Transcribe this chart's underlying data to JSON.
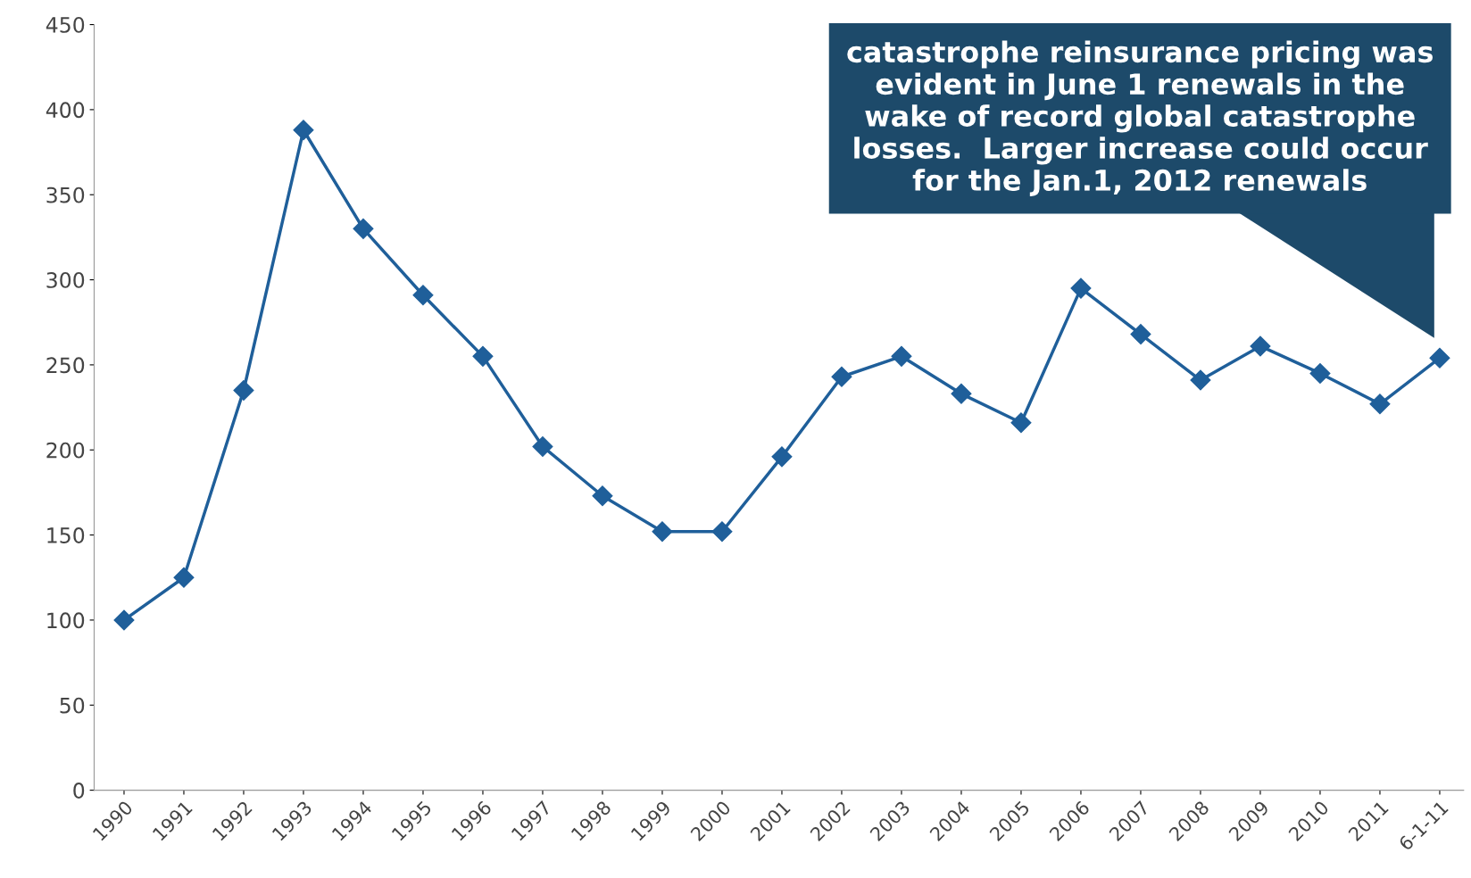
{
  "chart_data": {
    "type": "line",
    "categories": [
      "1990",
      "1991",
      "1992",
      "1993",
      "1994",
      "1995",
      "1996",
      "1997",
      "1998",
      "1999",
      "2000",
      "2001",
      "2002",
      "2003",
      "2004",
      "2005",
      "2006",
      "2007",
      "2008",
      "2009",
      "2010",
      "2011",
      "6-1-11"
    ],
    "series": [
      {
        "color": "#1f5f9a",
        "values": [
          100,
          125,
          235,
          388,
          330,
          291,
          255,
          202,
          173,
          152,
          152,
          196,
          243,
          255,
          233,
          216,
          295,
          268,
          241,
          261,
          245,
          227,
          254
        ]
      }
    ],
    "ylim": [
      0,
      450
    ],
    "yticks": [
      0,
      50,
      100,
      150,
      200,
      250,
      300,
      350,
      400,
      450
    ],
    "marker": "diamond",
    "line_style": "solid",
    "grid": false,
    "legend": false,
    "annotations": [
      "catastrophe reinsurance pricing was\nevident in June 1 renewals in the\nwake of record global catastrophe\nlosses.  Larger increase could occur\nfor the Jan.1, 2012 renewals"
    ]
  }
}
